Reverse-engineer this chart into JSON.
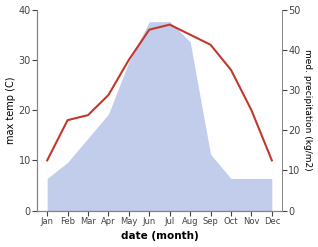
{
  "months": [
    "Jan",
    "Feb",
    "Mar",
    "Apr",
    "May",
    "Jun",
    "Jul",
    "Aug",
    "Sep",
    "Oct",
    "Nov",
    "Dec"
  ],
  "x": [
    1,
    2,
    3,
    4,
    5,
    6,
    7,
    8,
    9,
    10,
    11,
    12
  ],
  "temperature": [
    10,
    18,
    19,
    23,
    30,
    36,
    37,
    35,
    33,
    28,
    20,
    10
  ],
  "precipitation": [
    8,
    12,
    18,
    24,
    37,
    47,
    47,
    42,
    14,
    8,
    8,
    8
  ],
  "temp_color": "#c0392b",
  "precip_fill_color": "#b8c4e8",
  "temp_ylim": [
    0,
    40
  ],
  "precip_ylim": [
    0,
    50
  ],
  "temp_yticks": [
    0,
    10,
    20,
    30,
    40
  ],
  "precip_yticks": [
    0,
    10,
    20,
    30,
    40,
    50
  ],
  "xlabel": "date (month)",
  "ylabel_left": "max temp (C)",
  "ylabel_right": "med. precipitation (kg/m2)",
  "xlim": [
    0.5,
    12.5
  ]
}
